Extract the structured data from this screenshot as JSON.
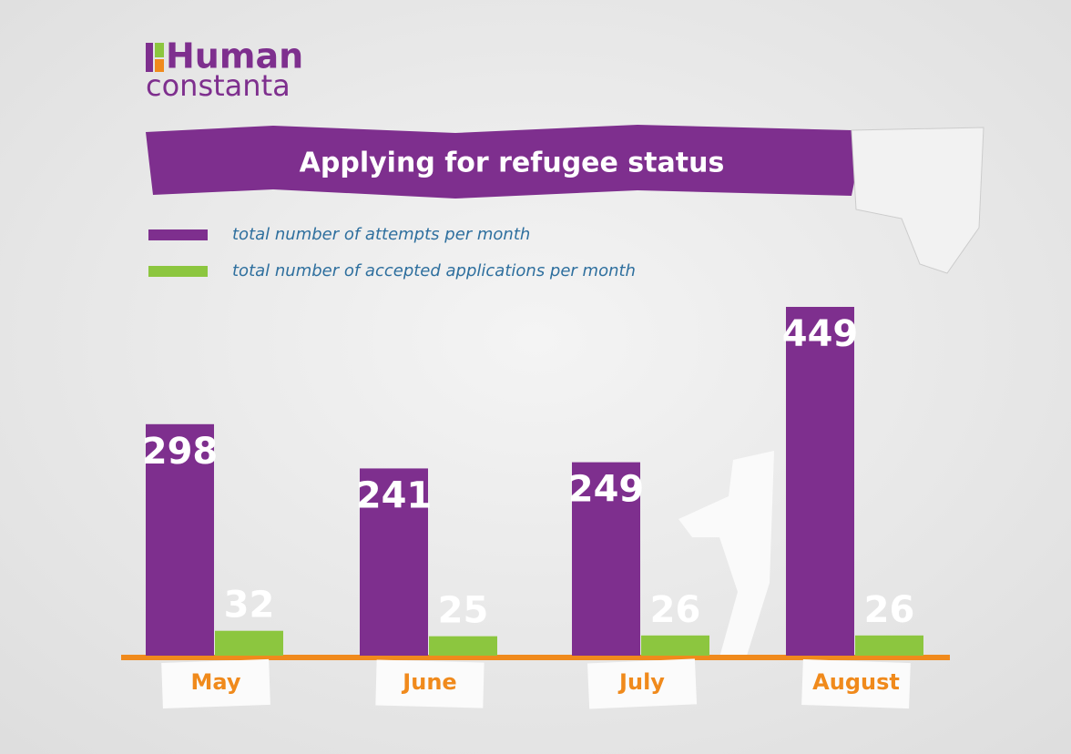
{
  "logo": {
    "line1": "Human",
    "line2": "constanta"
  },
  "chart_data": {
    "type": "bar",
    "title": "Applying for refugee status",
    "categories": [
      "May",
      "June",
      "July",
      "August"
    ],
    "series": [
      {
        "name": "total number of attempts per month",
        "color": "#7e2f8e",
        "values": [
          298,
          241,
          249,
          449
        ]
      },
      {
        "name": "total number of accepted applications per month",
        "color": "#8cc63f",
        "values": [
          32,
          25,
          26,
          26
        ]
      }
    ]
  }
}
